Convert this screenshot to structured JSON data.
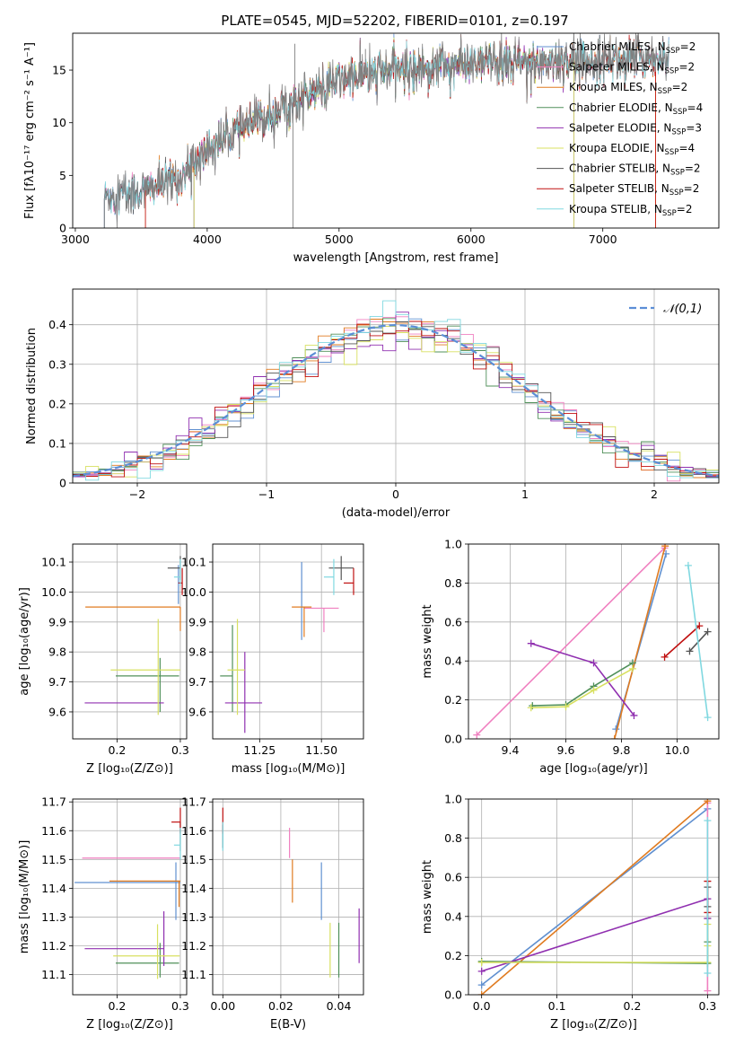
{
  "figure": {
    "title": "PLATE=0545, MJD=52202, FIBERID=0101, z=0.197"
  },
  "models": [
    {
      "name": "Chabrier MILES",
      "nssp": "2",
      "color": "#6090d0"
    },
    {
      "name": "Salpeter MILES",
      "nssp": "2",
      "color": "#f080c0"
    },
    {
      "name": "Kroupa MILES",
      "nssp": "2",
      "color": "#e07b20"
    },
    {
      "name": "Chabrier ELODIE",
      "nssp": "4",
      "color": "#50905a"
    },
    {
      "name": "Salpeter ELODIE",
      "nssp": "3",
      "color": "#9030b0"
    },
    {
      "name": "Kroupa ELODIE",
      "nssp": "4",
      "color": "#d8e060"
    },
    {
      "name": "Chabrier STELIB",
      "nssp": "2",
      "color": "#555555"
    },
    {
      "name": "Salpeter STELIB",
      "nssp": "2",
      "color": "#c01010"
    },
    {
      "name": "Kroupa STELIB",
      "nssp": "2",
      "color": "#80d8e0"
    }
  ],
  "legend_text": {
    "nssp_prefix": "N",
    "nssp_sub": "SSP",
    "eq": "="
  },
  "chart_data": [
    {
      "id": "spectrum",
      "type": "line",
      "xlabel": "wavelength [Angstrom, rest frame]",
      "ylabel": "Flux [fλ10⁻¹⁷ erg cm⁻² s⁻¹ A⁻¹]",
      "xlim": [
        2980,
        7880
      ],
      "ylim": [
        0,
        18.5
      ],
      "xticks": [
        3000,
        4000,
        5000,
        6000,
        7000
      ],
      "yticks": [
        0,
        5,
        10,
        15
      ],
      "data_range": [
        3220,
        7500
      ],
      "continuum_anchors": [
        [
          3220,
          3.0
        ],
        [
          3500,
          3.5
        ],
        [
          3800,
          4.8
        ],
        [
          4000,
          7.5
        ],
        [
          4200,
          9.0
        ],
        [
          4500,
          11.0
        ],
        [
          4800,
          12.8
        ],
        [
          5000,
          14.0
        ],
        [
          5200,
          14.6
        ],
        [
          5500,
          15.2
        ],
        [
          6000,
          15.6
        ],
        [
          6500,
          15.8
        ],
        [
          7000,
          16.0
        ],
        [
          7500,
          16.3
        ]
      ],
      "spikes": [
        [
          4650,
          0.0
        ],
        [
          4665,
          17.5
        ],
        [
          5200,
          17.0
        ],
        [
          7250,
          19.0
        ]
      ],
      "model_cutoffs_low": [
        3220,
        3220,
        3530,
        3900,
        3900,
        3900,
        3220,
        3530,
        3220
      ],
      "model_cutoffs_high": [
        7500,
        7500,
        7400,
        6780,
        6780,
        6780,
        7500,
        7400,
        7500
      ],
      "legend_position": "upper-right"
    },
    {
      "id": "residuals",
      "type": "histogram",
      "xlabel": "(data-model)/error",
      "ylabel": "Normed distribution",
      "xlim": [
        -2.5,
        2.5
      ],
      "ylim": [
        0,
        0.49
      ],
      "xticks": [
        -2,
        -1,
        0,
        1,
        2
      ],
      "yticks": [
        0.0,
        0.1,
        0.2,
        0.3,
        0.4
      ],
      "bin_width": 0.1,
      "reference_curve": {
        "label": "𝒩(0,1)",
        "mu": 0,
        "sigma": 1,
        "color": "#5b8ed6"
      },
      "legend_position": "upper-right"
    },
    {
      "id": "age-vs-Z",
      "type": "errorbar",
      "xlabel": "Z [log₁₀(Z/Z⊙)]",
      "ylabel": "age  [log₁₀(age/yr)]",
      "xlim": [
        0.13,
        0.31
      ],
      "ylim": [
        9.51,
        10.16
      ],
      "xticks": [
        0.2,
        0.3
      ],
      "yticks": [
        9.6,
        9.7,
        9.8,
        9.9,
        10.0,
        10.1
      ],
      "points": [
        {
          "m": 0,
          "x": 0.297,
          "y": 10.03,
          "xerr": [
            0.0,
            0.003
          ],
          "yerr": [
            0.07,
            0.06
          ]
        },
        {
          "m": 1,
          "x": 0.299,
          "y": 9.946,
          "xerr": [
            0.0,
            0.001
          ],
          "yerr": [
            0.0,
            0.0
          ]
        },
        {
          "m": 2,
          "x": 0.3,
          "y": 9.95,
          "xerr": [
            0.15,
            0.0
          ],
          "yerr": [
            0.08,
            0.0
          ]
        },
        {
          "m": 3,
          "x": 0.268,
          "y": 9.72,
          "xerr": [
            0.07,
            0.03
          ],
          "yerr": [
            0.12,
            0.06
          ]
        },
        {
          "m": 4,
          "x": 0.274,
          "y": 9.63,
          "xerr": [
            0.125,
            0.0
          ],
          "yerr": [
            0.0,
            0.0
          ]
        },
        {
          "m": 5,
          "x": 0.265,
          "y": 9.74,
          "xerr": [
            0.075,
            0.035
          ],
          "yerr": [
            0.15,
            0.17
          ]
        },
        {
          "m": 6,
          "x": 0.3,
          "y": 10.08,
          "xerr": [
            0.02,
            0.0
          ],
          "yerr": [
            0.04,
            0.04
          ]
        },
        {
          "m": 7,
          "x": 0.303,
          "y": 10.03,
          "xerr": [
            0.006,
            0.0
          ],
          "yerr": [
            0.04,
            0.05
          ]
        },
        {
          "m": 8,
          "x": 0.3,
          "y": 10.05,
          "xerr": [
            0.01,
            0.0
          ],
          "yerr": [
            0.03,
            0.06
          ]
        }
      ]
    },
    {
      "id": "age-vs-mass",
      "type": "errorbar",
      "xlabel": "mass [log₁₀(M/M⊙)]",
      "ylabel": "",
      "xlim": [
        11.06,
        11.67
      ],
      "ylim": [
        9.51,
        10.16
      ],
      "xticks": [
        11.25,
        11.5
      ],
      "yticks": [
        9.6,
        9.7,
        9.8,
        9.9,
        10.0,
        10.1
      ],
      "points": [
        {
          "m": 0,
          "x": 11.42,
          "y": 9.95,
          "xerr": [
            0.0,
            0.0
          ],
          "yerr": [
            0.11,
            0.15
          ]
        },
        {
          "m": 1,
          "x": 11.51,
          "y": 9.946,
          "xerr": [
            0.08,
            0.06
          ],
          "yerr": [
            0.08,
            0.0
          ]
        },
        {
          "m": 2,
          "x": 11.43,
          "y": 9.95,
          "xerr": [
            0.05,
            0.03
          ],
          "yerr": [
            0.1,
            0.0
          ]
        },
        {
          "m": 3,
          "x": 11.14,
          "y": 9.72,
          "xerr": [
            0.05,
            0.0
          ],
          "yerr": [
            0.12,
            0.17
          ]
        },
        {
          "m": 4,
          "x": 11.19,
          "y": 9.63,
          "xerr": [
            0.08,
            0.07
          ],
          "yerr": [
            0.1,
            0.17
          ]
        },
        {
          "m": 5,
          "x": 11.16,
          "y": 9.74,
          "xerr": [
            0.04,
            0.03
          ],
          "yerr": [
            0.15,
            0.17
          ]
        },
        {
          "m": 6,
          "x": 11.58,
          "y": 10.08,
          "xerr": [
            0.05,
            0.05
          ],
          "yerr": [
            0.04,
            0.04
          ]
        },
        {
          "m": 7,
          "x": 11.63,
          "y": 10.03,
          "xerr": [
            0.04,
            0.0
          ],
          "yerr": [
            0.04,
            0.05
          ]
        },
        {
          "m": 8,
          "x": 11.55,
          "y": 10.05,
          "xerr": [
            0.04,
            0.0
          ],
          "yerr": [
            0.06,
            0.06
          ]
        }
      ]
    },
    {
      "id": "weight-vs-age",
      "type": "line",
      "xlabel": "age  [log₁₀(age/yr)]",
      "ylabel": "mass weight",
      "xlim": [
        9.25,
        10.15
      ],
      "ylim": [
        0,
        1
      ],
      "xticks": [
        9.4,
        9.6,
        9.8,
        10.0
      ],
      "yticks": [
        0.0,
        0.2,
        0.4,
        0.6,
        0.8,
        1.0
      ],
      "series": [
        {
          "m": 0,
          "points": [
            [
              9.78,
              0.05
            ],
            [
              9.96,
              0.95
            ]
          ]
        },
        {
          "m": 1,
          "points": [
            [
              9.28,
              0.02
            ],
            [
              9.955,
              0.98
            ]
          ]
        },
        {
          "m": 2,
          "points": [
            [
              9.775,
              0.0
            ],
            [
              9.957,
              0.99
            ]
          ]
        },
        {
          "m": 3,
          "points": [
            [
              9.48,
              0.17
            ],
            [
              9.6,
              0.175
            ],
            [
              9.7,
              0.27
            ],
            [
              9.84,
              0.39
            ]
          ]
        },
        {
          "m": 4,
          "points": [
            [
              9.475,
              0.49
            ],
            [
              9.7,
              0.39
            ],
            [
              9.845,
              0.12
            ]
          ]
        },
        {
          "m": 5,
          "points": [
            [
              9.475,
              0.16
            ],
            [
              9.6,
              0.165
            ],
            [
              9.7,
              0.25
            ],
            [
              9.84,
              0.36
            ]
          ]
        },
        {
          "m": 6,
          "points": [
            [
              10.045,
              0.45
            ],
            [
              10.11,
              0.55
            ]
          ]
        },
        {
          "m": 7,
          "points": [
            [
              9.955,
              0.42
            ],
            [
              10.08,
              0.58
            ]
          ]
        },
        {
          "m": 8,
          "points": [
            [
              10.04,
              0.89
            ],
            [
              10.11,
              0.11
            ]
          ]
        }
      ]
    },
    {
      "id": "mass-vs-Z",
      "type": "errorbar",
      "xlabel": "Z [log₁₀(Z/Z⊙)]",
      "ylabel": "mass [log₁₀(M/M⊙)]",
      "xlim": [
        0.13,
        0.31
      ],
      "ylim": [
        11.03,
        11.71
      ],
      "xticks": [
        0.2,
        0.3
      ],
      "yticks": [
        11.1,
        11.2,
        11.3,
        11.4,
        11.5,
        11.6,
        11.7
      ],
      "points": [
        {
          "m": 0,
          "x": 0.293,
          "y": 11.42,
          "xerr": [
            0.16,
            0.007
          ],
          "yerr": [
            0.13,
            0.07
          ]
        },
        {
          "m": 1,
          "x": 0.3,
          "y": 11.505,
          "xerr": [
            0.155,
            0.0
          ],
          "yerr": [
            0.0,
            0.0
          ]
        },
        {
          "m": 2,
          "x": 0.298,
          "y": 11.425,
          "xerr": [
            0.11,
            0.002
          ],
          "yerr": [
            0.09,
            0.0
          ]
        },
        {
          "m": 3,
          "x": 0.268,
          "y": 11.14,
          "xerr": [
            0.07,
            0.03
          ],
          "yerr": [
            0.05,
            0.07
          ]
        },
        {
          "m": 4,
          "x": 0.274,
          "y": 11.19,
          "xerr": [
            0.125,
            0.0
          ],
          "yerr": [
            0.06,
            0.13
          ]
        },
        {
          "m": 5,
          "x": 0.264,
          "y": 11.165,
          "xerr": [
            0.07,
            0.035
          ],
          "yerr": [
            0.08,
            0.11
          ]
        },
        {
          "m": 6,
          "x": 0.3,
          "y": 11.58,
          "xerr": [
            0.0,
            0.0
          ],
          "yerr": [
            0.05,
            0.05
          ]
        },
        {
          "m": 7,
          "x": 0.3,
          "y": 11.63,
          "xerr": [
            0.014,
            0.0
          ],
          "yerr": [
            0.04,
            0.05
          ]
        },
        {
          "m": 8,
          "x": 0.3,
          "y": 11.55,
          "xerr": [
            0.01,
            0.0
          ],
          "yerr": [
            0.05,
            0.06
          ]
        }
      ]
    },
    {
      "id": "mass-vs-ebv",
      "type": "errorbar",
      "xlabel": "E(B-V)",
      "ylabel": "",
      "xlim": [
        -0.0035,
        0.0485
      ],
      "ylim": [
        11.03,
        11.71
      ],
      "xticks": [
        0.0,
        0.02,
        0.04
      ],
      "yticks": [
        11.1,
        11.2,
        11.3,
        11.4,
        11.5,
        11.6,
        11.7
      ],
      "points": [
        {
          "m": 0,
          "x": 0.034,
          "y": 11.42,
          "xerr": [
            0.0,
            0.0
          ],
          "yerr": [
            0.13,
            0.07
          ]
        },
        {
          "m": 1,
          "x": 0.023,
          "y": 11.505,
          "xerr": [
            0.0,
            0.0
          ],
          "yerr": [
            0.0,
            0.105
          ]
        },
        {
          "m": 2,
          "x": 0.024,
          "y": 11.43,
          "xerr": [
            0.0,
            0.0
          ],
          "yerr": [
            0.08,
            0.07
          ]
        },
        {
          "m": 3,
          "x": 0.04,
          "y": 11.185,
          "xerr": [
            0.0,
            0.0
          ],
          "yerr": [
            0.095,
            0.095
          ]
        },
        {
          "m": 4,
          "x": 0.047,
          "y": 11.23,
          "xerr": [
            0.0,
            0.0
          ],
          "yerr": [
            0.09,
            0.1
          ]
        },
        {
          "m": 5,
          "x": 0.037,
          "y": 11.185,
          "xerr": [
            0.0,
            0.0
          ],
          "yerr": [
            0.095,
            0.095
          ]
        },
        {
          "m": 6,
          "x": 0.0,
          "y": 11.58,
          "xerr": [
            0.0,
            0.0
          ],
          "yerr": [
            0.04,
            0.04
          ]
        },
        {
          "m": 7,
          "x": 0.0,
          "y": 11.63,
          "xerr": [
            0.0,
            0.0
          ],
          "yerr": [
            0.04,
            0.05
          ]
        },
        {
          "m": 8,
          "x": 0.0,
          "y": 11.57,
          "xerr": [
            0.0,
            0.0
          ],
          "yerr": [
            0.04,
            0.06
          ]
        }
      ]
    },
    {
      "id": "weight-vs-Z",
      "type": "line",
      "xlabel": "Z [log₁₀(Z/Z⊙)]",
      "ylabel": "mass weight",
      "xlim": [
        -0.0175,
        0.315
      ],
      "ylim": [
        0,
        1
      ],
      "xticks": [
        0.0,
        0.1,
        0.2,
        0.3
      ],
      "yticks": [
        0.0,
        0.2,
        0.4,
        0.6,
        0.8,
        1.0
      ],
      "series": [
        {
          "m": 0,
          "points": [
            [
              0.0,
              0.05
            ],
            [
              0.3,
              0.95
            ]
          ]
        },
        {
          "m": 1,
          "points": [
            [
              0.3,
              0.02
            ],
            [
              0.3,
              0.98
            ]
          ]
        },
        {
          "m": 2,
          "points": [
            [
              0.0,
              0.0
            ],
            [
              0.3,
              0.99
            ]
          ]
        },
        {
          "m": 3,
          "points": [
            [
              0.0,
              0.17
            ],
            [
              0.3,
              0.16
            ],
            [
              0.3,
              0.27
            ],
            [
              0.3,
              0.39
            ]
          ]
        },
        {
          "m": 4,
          "points": [
            [
              0.0,
              0.12
            ],
            [
              0.3,
              0.49
            ],
            [
              0.3,
              0.39
            ]
          ]
        },
        {
          "m": 5,
          "points": [
            [
              0.0,
              0.165
            ],
            [
              0.3,
              0.165
            ],
            [
              0.3,
              0.25
            ],
            [
              0.3,
              0.36
            ]
          ]
        },
        {
          "m": 6,
          "points": [
            [
              0.3,
              0.45
            ],
            [
              0.3,
              0.55
            ]
          ]
        },
        {
          "m": 7,
          "points": [
            [
              0.3,
              0.42
            ],
            [
              0.3,
              0.58
            ]
          ]
        },
        {
          "m": 8,
          "points": [
            [
              0.3,
              0.89
            ],
            [
              0.3,
              0.11
            ]
          ]
        }
      ]
    }
  ]
}
